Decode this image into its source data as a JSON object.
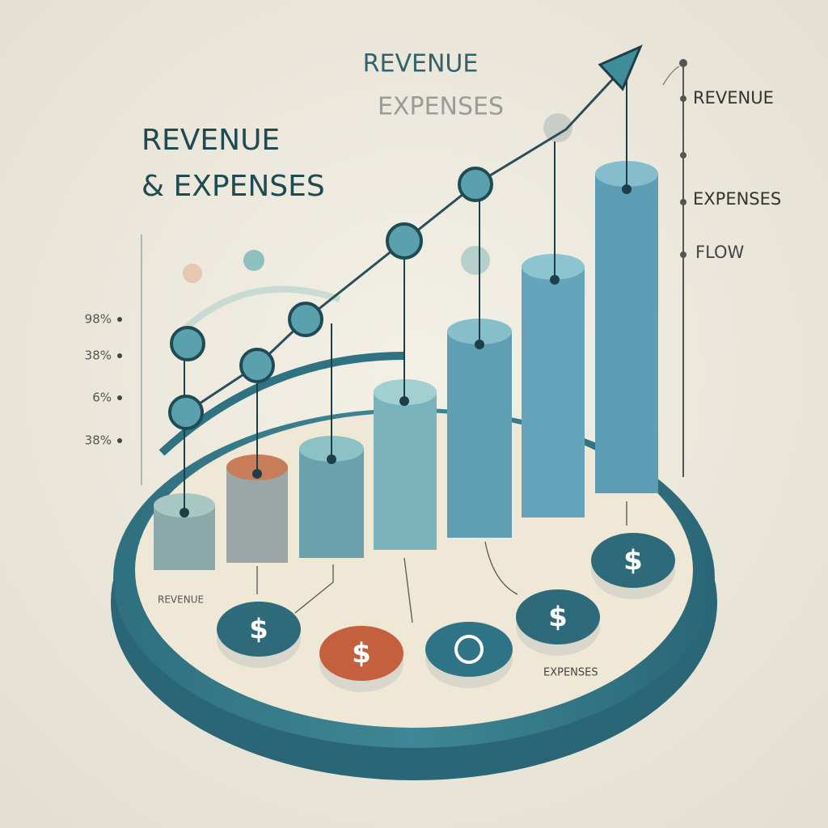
{
  "header": {
    "faded_title_1": "REVENUE",
    "faded_title_2": "EXPENSES",
    "title_line_1": "REVENUE",
    "title_line_2": "& EXPENSES"
  },
  "legend": [
    "REVENUE",
    "EXPENSES",
    "FLOW"
  ],
  "left_labels": [
    "98%",
    "38%",
    "6%",
    "38%"
  ],
  "bottom_labels": [
    "REVENUE",
    "EXPENSES"
  ]
}
